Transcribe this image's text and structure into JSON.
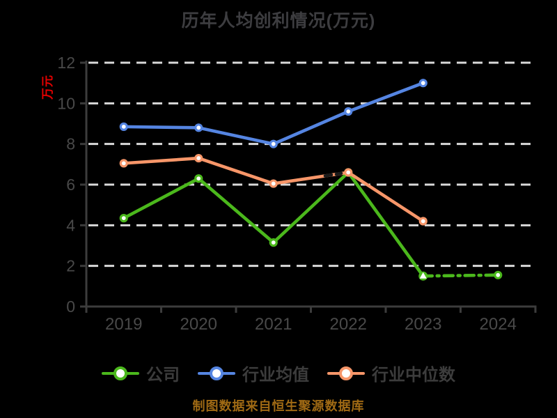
{
  "title": "历年人均创利情况(万元)",
  "y_axis_label": "万元",
  "footer": "制图数据来自恒生聚源数据库",
  "colors": {
    "background": "#000000",
    "title_text": "#3d3d40",
    "axis": "#3c3c3c",
    "tick_label": "#494949",
    "gridline": "#d9d9d9",
    "y_axis_label_text": "#e60000",
    "footer_text": "#a06a14",
    "series_company": "#4bb81c",
    "series_industry_mean": "#5585e2",
    "series_industry_median": "#f79669"
  },
  "chart_data": {
    "type": "line",
    "title": "历年人均创利情况(万元)",
    "xlabel": "",
    "ylabel": "万元",
    "categories": [
      "2019",
      "2020",
      "2021",
      "2022",
      "2023",
      "2024"
    ],
    "y_ticks": [
      0,
      2,
      4,
      6,
      8,
      10,
      12
    ],
    "ylim": [
      0,
      12
    ],
    "grid": "horizontal dashed",
    "legend_position": "bottom",
    "series": [
      {
        "name": "公司",
        "color": "#4bb81c",
        "values": [
          4.35,
          6.3,
          3.15,
          6.6,
          1.5,
          1.55
        ],
        "line_style": "solid",
        "last_segment_dashed": true,
        "marker": "circle-white-fill",
        "special_marker_2023": "green-dot-with-white-triangle"
      },
      {
        "name": "行业均值",
        "color": "#5585e2",
        "values": [
          8.85,
          8.8,
          8.0,
          9.6,
          11.0,
          null
        ],
        "line_style": "solid",
        "marker": "circle-white-fill"
      },
      {
        "name": "行业中位数",
        "color": "#f79669",
        "values": [
          7.05,
          7.3,
          6.05,
          6.6,
          4.2,
          null
        ],
        "line_style": "solid",
        "marker": "circle-white-fill"
      }
    ]
  }
}
